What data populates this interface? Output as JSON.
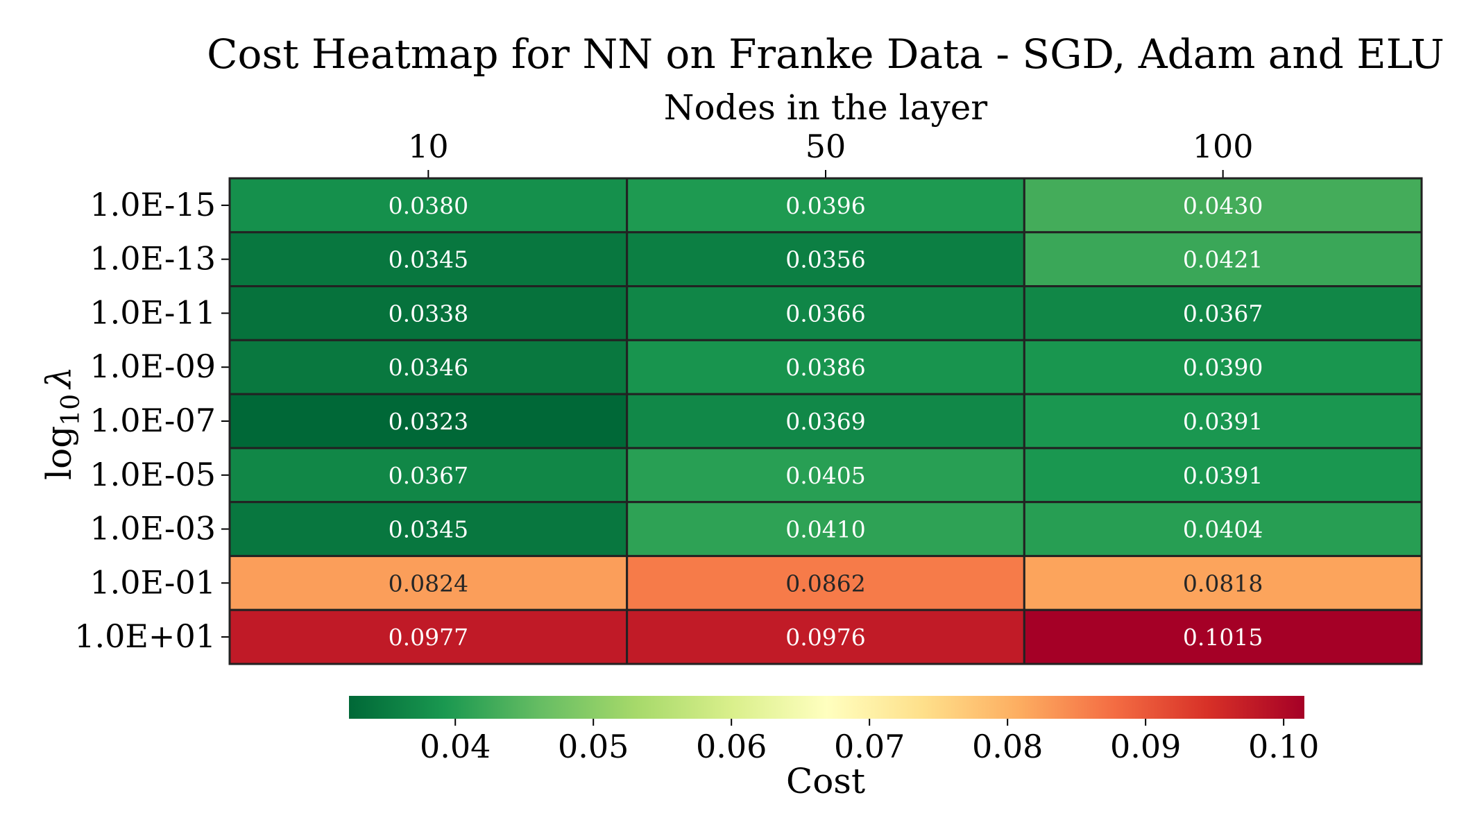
{
  "chart_data": {
    "type": "heatmap",
    "title": "Cost Heatmap for NN on Franke Data - SGD, Adam and ELU",
    "xlabel": "Nodes in the layer",
    "ylabel": "log10 λ",
    "ylabel_base": "log",
    "ylabel_subscript": "10",
    "ylabel_symbol": "λ",
    "x_categories": [
      "10",
      "50",
      "100"
    ],
    "y_categories": [
      "1.0E-15",
      "1.0E-13",
      "1.0E-11",
      "1.0E-09",
      "1.0E-07",
      "1.0E-05",
      "1.0E-03",
      "1.0E-01",
      "1.0E+01"
    ],
    "values": [
      [
        0.038,
        0.0396,
        0.043
      ],
      [
        0.0345,
        0.0356,
        0.0421
      ],
      [
        0.0338,
        0.0366,
        0.0367
      ],
      [
        0.0346,
        0.0386,
        0.039
      ],
      [
        0.0323,
        0.0369,
        0.0391
      ],
      [
        0.0367,
        0.0405,
        0.0391
      ],
      [
        0.0345,
        0.041,
        0.0404
      ],
      [
        0.0824,
        0.0862,
        0.0818
      ],
      [
        0.0977,
        0.0976,
        0.1015
      ]
    ],
    "value_format_decimals": 4,
    "colorbar": {
      "label": "Cost",
      "colormap": "RdYlGn_r",
      "range": [
        0.0323,
        0.1015
      ],
      "ticks": [
        0.04,
        0.05,
        0.06,
        0.07,
        0.08,
        0.09,
        0.1
      ],
      "tick_labels": [
        "0.04",
        "0.05",
        "0.06",
        "0.07",
        "0.08",
        "0.09",
        "0.10"
      ],
      "orientation": "horizontal",
      "placement": "bottom"
    },
    "x_axis_position": "top",
    "cell_border_color": "#222222",
    "colormap_stops": [
      "#006837",
      "#1a9850",
      "#66bd63",
      "#a6d96a",
      "#d9ef8b",
      "#ffffbf",
      "#fee08b",
      "#fdae61",
      "#f46d43",
      "#d73027",
      "#a50026"
    ]
  }
}
